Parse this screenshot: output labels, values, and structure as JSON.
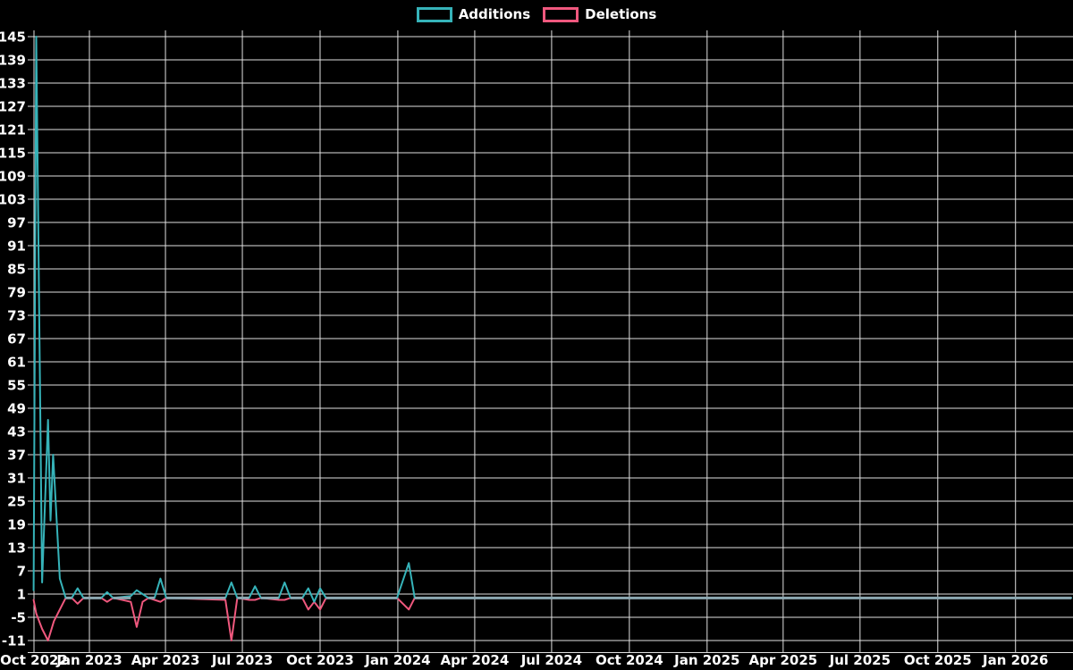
{
  "legend": {
    "items": [
      {
        "label": "Additions",
        "color": "#36b3b9"
      },
      {
        "label": "Deletions",
        "color": "#f0587e"
      }
    ]
  },
  "colors": {
    "background": "#000000",
    "grid": "#e0e0e0",
    "text": "#ffffff",
    "additions": "#36b3b9",
    "deletions": "#f0587e",
    "flat_zero_line": "#8ca8b2"
  },
  "chart_data": {
    "type": "line",
    "grid": true,
    "legend_position": "top-center",
    "background": "#000000",
    "y_axis": {
      "tick_values": [
        145,
        139,
        133,
        127,
        121,
        115,
        109,
        103,
        97,
        91,
        85,
        79,
        73,
        67,
        61,
        55,
        49,
        43,
        37,
        31,
        25,
        19,
        13,
        7,
        1,
        -5,
        -11
      ],
      "range": [
        -13,
        147
      ]
    },
    "x_axis": {
      "ticks": [
        {
          "label": "Oct 2022",
          "date": "2022-10-01"
        },
        {
          "label": "Jan 2023",
          "date": "2023-01-01"
        },
        {
          "label": "Apr 2023",
          "date": "2023-04-01"
        },
        {
          "label": "Jul 2023",
          "date": "2023-07-01"
        },
        {
          "label": "Oct 2023",
          "date": "2023-10-01"
        },
        {
          "label": "Jan 2024",
          "date": "2024-01-01"
        },
        {
          "label": "Apr 2024",
          "date": "2024-04-01"
        },
        {
          "label": "Jul 2024",
          "date": "2024-07-01"
        },
        {
          "label": "Oct 2024",
          "date": "2024-10-01"
        },
        {
          "label": "Jan 2025",
          "date": "2025-01-01"
        },
        {
          "label": "Apr 2025",
          "date": "2025-04-01"
        },
        {
          "label": "Jul 2025",
          "date": "2025-07-01"
        },
        {
          "label": "Oct 2025",
          "date": "2025-10-01"
        },
        {
          "label": "Jan 2026",
          "date": "2026-01-01"
        }
      ],
      "range": [
        "2022-10-27",
        "2026-03-08"
      ]
    },
    "series": [
      {
        "name": "Additions",
        "color": "#36b3b9",
        "points": [
          [
            "2022-10-27",
            2
          ],
          [
            "2022-10-30",
            145
          ],
          [
            "2022-11-06",
            4
          ],
          [
            "2022-11-13",
            46
          ],
          [
            "2022-11-16",
            20
          ],
          [
            "2022-11-19",
            37
          ],
          [
            "2022-11-27",
            5
          ],
          [
            "2022-12-04",
            0
          ],
          [
            "2022-12-11",
            0
          ],
          [
            "2022-12-18",
            2.5
          ],
          [
            "2022-12-25",
            0
          ],
          [
            "2023-01-15",
            0
          ],
          [
            "2023-01-22",
            1.5
          ],
          [
            "2023-01-29",
            0
          ],
          [
            "2023-02-19",
            0.5
          ],
          [
            "2023-02-26",
            2
          ],
          [
            "2023-03-05",
            1
          ],
          [
            "2023-03-12",
            0
          ],
          [
            "2023-03-19",
            0
          ],
          [
            "2023-03-26",
            5
          ],
          [
            "2023-04-02",
            0
          ],
          [
            "2023-06-11",
            0
          ],
          [
            "2023-06-18",
            4
          ],
          [
            "2023-06-25",
            0
          ],
          [
            "2023-07-09",
            0
          ],
          [
            "2023-07-16",
            3
          ],
          [
            "2023-07-23",
            0
          ],
          [
            "2023-08-13",
            0
          ],
          [
            "2023-08-20",
            4
          ],
          [
            "2023-08-27",
            0
          ],
          [
            "2023-09-10",
            0
          ],
          [
            "2023-09-17",
            2.5
          ],
          [
            "2023-09-24",
            -1
          ],
          [
            "2023-10-01",
            2.5
          ],
          [
            "2023-10-08",
            0
          ],
          [
            "2023-12-31",
            0
          ],
          [
            "2024-01-14",
            9
          ],
          [
            "2024-01-21",
            0
          ],
          [
            "2026-03-08",
            0
          ]
        ]
      },
      {
        "name": "Deletions",
        "color": "#f0587e",
        "points": [
          [
            "2022-10-27",
            -0.5
          ],
          [
            "2022-10-30",
            -4
          ],
          [
            "2022-11-06",
            -8
          ],
          [
            "2022-11-13",
            -11
          ],
          [
            "2022-11-20",
            -6
          ],
          [
            "2022-11-27",
            -3
          ],
          [
            "2022-12-04",
            0
          ],
          [
            "2022-12-11",
            0
          ],
          [
            "2022-12-18",
            -1.5
          ],
          [
            "2022-12-25",
            0
          ],
          [
            "2023-01-15",
            0
          ],
          [
            "2023-01-22",
            -1
          ],
          [
            "2023-01-29",
            0
          ],
          [
            "2023-02-19",
            -1
          ],
          [
            "2023-02-26",
            -7.5
          ],
          [
            "2023-03-05",
            -1
          ],
          [
            "2023-03-12",
            0
          ],
          [
            "2023-03-19",
            -0.5
          ],
          [
            "2023-03-26",
            -1
          ],
          [
            "2023-04-02",
            0
          ],
          [
            "2023-06-11",
            -0.5
          ],
          [
            "2023-06-18",
            -11
          ],
          [
            "2023-06-25",
            0
          ],
          [
            "2023-07-09",
            -0.5
          ],
          [
            "2023-07-16",
            -0.5
          ],
          [
            "2023-07-23",
            0
          ],
          [
            "2023-08-13",
            -0.5
          ],
          [
            "2023-08-20",
            -0.5
          ],
          [
            "2023-08-27",
            0
          ],
          [
            "2023-09-10",
            0
          ],
          [
            "2023-09-17",
            -3
          ],
          [
            "2023-09-24",
            -1
          ],
          [
            "2023-10-01",
            -3
          ],
          [
            "2023-10-08",
            0
          ],
          [
            "2023-12-31",
            0
          ],
          [
            "2024-01-14",
            -3
          ],
          [
            "2024-01-21",
            0
          ],
          [
            "2026-03-08",
            0
          ]
        ]
      }
    ],
    "flat_zero_segments": [
      [
        "2022-12-04",
        "2022-12-11"
      ],
      [
        "2022-12-25",
        "2023-01-15"
      ],
      [
        "2023-01-29",
        "2023-02-19"
      ],
      [
        "2023-03-12",
        "2023-03-19"
      ],
      [
        "2023-04-02",
        "2023-06-11"
      ],
      [
        "2023-06-25",
        "2023-07-09"
      ],
      [
        "2023-07-23",
        "2023-08-13"
      ],
      [
        "2023-08-27",
        "2023-09-10"
      ],
      [
        "2023-10-08",
        "2023-12-31"
      ],
      [
        "2024-01-21",
        "2026-03-08"
      ]
    ]
  }
}
